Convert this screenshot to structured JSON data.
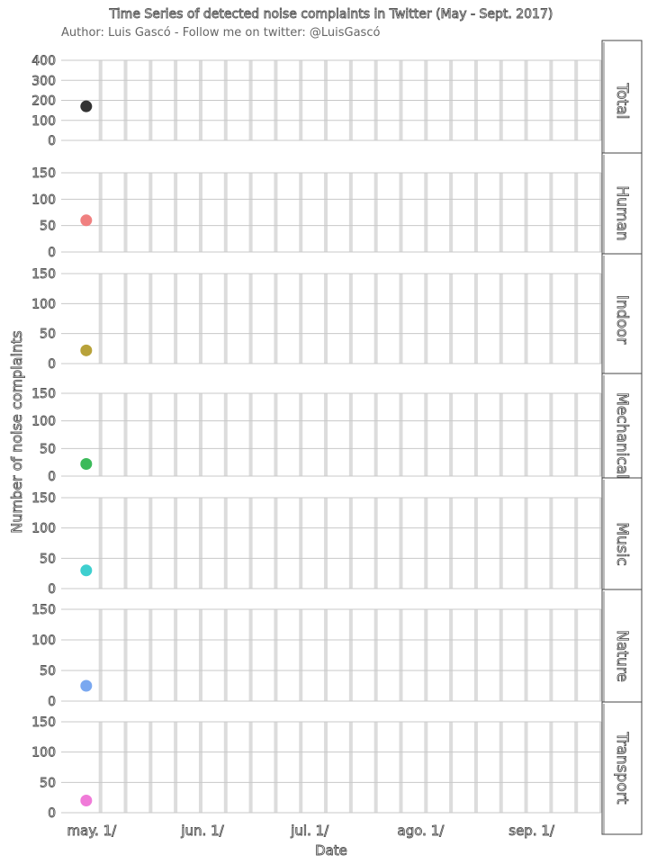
{
  "chart_data": {
    "type": "scatter",
    "title": "Time Series of detected noise complaints in Twitter (May - Sept. 2017)",
    "subtitle": "Author: Luis Gascó - Follow me on twitter: @LuisGascó",
    "xlabel": "Date",
    "ylabel": "Number of noise complaints",
    "x_ticks": [
      "may. 1/",
      "jun. 1/",
      "jul. 1/",
      "ago. 1/",
      "sep. 1/"
    ],
    "x_tick_dates": [
      "2017-05-01",
      "2017-06-01",
      "2017-07-01",
      "2017-08-01",
      "2017-09-01"
    ],
    "xlim": [
      "2017-04-26",
      "2017-09-24"
    ],
    "grid": true,
    "legend": "none",
    "panels": [
      {
        "name": "Total",
        "color": "#333333",
        "ylim": [
          0,
          400
        ],
        "y_ticks": [
          0,
          100,
          200,
          300,
          400
        ],
        "points": [
          {
            "x": "2017-05-03",
            "y": 170
          }
        ]
      },
      {
        "name": "Human",
        "color": "#f08080",
        "ylim": [
          0,
          150
        ],
        "y_ticks": [
          0,
          50,
          100,
          150
        ],
        "points": [
          {
            "x": "2017-05-03",
            "y": 60
          }
        ]
      },
      {
        "name": "Indoor",
        "color": "#b8a23a",
        "ylim": [
          0,
          150
        ],
        "y_ticks": [
          0,
          50,
          100,
          150
        ],
        "points": [
          {
            "x": "2017-05-03",
            "y": 22
          }
        ]
      },
      {
        "name": "Mechanical",
        "color": "#3cba5a",
        "ylim": [
          0,
          150
        ],
        "y_ticks": [
          0,
          50,
          100,
          150
        ],
        "points": [
          {
            "x": "2017-05-03",
            "y": 22
          }
        ]
      },
      {
        "name": "Music",
        "color": "#3ecfcf",
        "ylim": [
          0,
          150
        ],
        "y_ticks": [
          0,
          50,
          100,
          150
        ],
        "points": [
          {
            "x": "2017-05-03",
            "y": 30
          }
        ]
      },
      {
        "name": "Nature",
        "color": "#7aa8f0",
        "ylim": [
          0,
          150
        ],
        "y_ticks": [
          0,
          50,
          100,
          150
        ],
        "points": [
          {
            "x": "2017-05-03",
            "y": 25
          }
        ]
      },
      {
        "name": "Transport",
        "color": "#f07ad8",
        "ylim": [
          0,
          150
        ],
        "y_ticks": [
          0,
          50,
          100,
          150
        ],
        "points": [
          {
            "x": "2017-05-03",
            "y": 20
          }
        ]
      }
    ]
  }
}
